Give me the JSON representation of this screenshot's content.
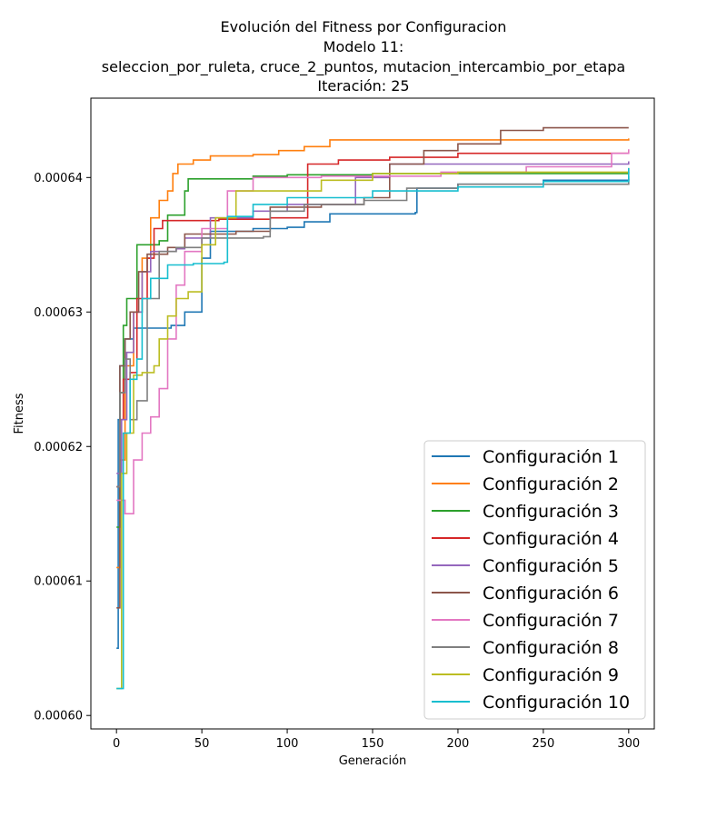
{
  "chart_data": {
    "type": "line",
    "title": "Evolución del Fitness por Configuracion",
    "subtitle_lines": [
      "Modelo 11:",
      "seleccion_por_ruleta, cruce_2_puntos, mutacion_intercambio_por_etapa",
      "Iteración: 25"
    ],
    "xlabel": "Generación",
    "ylabel": "Fitness",
    "xlim": [
      -15,
      315
    ],
    "ylim": [
      0.000599,
      0.0006459
    ],
    "xticks": [
      0,
      50,
      100,
      150,
      200,
      250,
      300
    ],
    "yticks": [
      0.0006,
      0.00061,
      0.00062,
      0.00063,
      0.00064
    ],
    "ytick_labels": [
      "0.00060",
      "0.00061",
      "0.00062",
      "0.00063",
      "0.00064"
    ],
    "grid": false,
    "legend_position": "lower-right",
    "series": [
      {
        "name": "Configuración 1",
        "color": "#1f77b4",
        "points": [
          [
            0,
            0.000605
          ],
          [
            1,
            0.000622
          ],
          [
            2,
            0.000626
          ],
          [
            5,
            0.000628
          ],
          [
            10,
            0.0006288
          ],
          [
            30,
            0.0006288
          ],
          [
            32,
            0.000629
          ],
          [
            40,
            0.00063
          ],
          [
            50,
            0.000634
          ],
          [
            55,
            0.000636
          ],
          [
            80,
            0.0006362
          ],
          [
            100,
            0.0006363
          ],
          [
            110,
            0.0006367
          ],
          [
            125,
            0.0006373
          ],
          [
            175,
            0.0006374
          ],
          [
            176,
            0.0006392
          ],
          [
            200,
            0.0006395
          ],
          [
            250,
            0.0006398
          ],
          [
            300,
            0.0006401
          ]
        ]
      },
      {
        "name": "Configuración 2",
        "color": "#ff7f0e",
        "points": [
          [
            0,
            0.000611
          ],
          [
            2,
            0.000619
          ],
          [
            5,
            0.000626
          ],
          [
            10,
            0.00063
          ],
          [
            15,
            0.000634
          ],
          [
            20,
            0.000637
          ],
          [
            25,
            0.0006383
          ],
          [
            30,
            0.000639
          ],
          [
            33,
            0.0006403
          ],
          [
            36,
            0.000641
          ],
          [
            45,
            0.0006413
          ],
          [
            55,
            0.0006416
          ],
          [
            80,
            0.0006417
          ],
          [
            95,
            0.000642
          ],
          [
            110,
            0.0006423
          ],
          [
            125,
            0.0006428
          ],
          [
            300,
            0.0006429
          ]
        ]
      },
      {
        "name": "Configuración 3",
        "color": "#2ca02c",
        "points": [
          [
            0,
            0.000614
          ],
          [
            2,
            0.000624
          ],
          [
            4,
            0.000629
          ],
          [
            6,
            0.000631
          ],
          [
            12,
            0.000635
          ],
          [
            20,
            0.000635
          ],
          [
            25,
            0.0006353
          ],
          [
            30,
            0.0006372
          ],
          [
            40,
            0.000639
          ],
          [
            42,
            0.0006399
          ],
          [
            80,
            0.0006401
          ],
          [
            100,
            0.0006402
          ],
          [
            150,
            0.0006403
          ],
          [
            200,
            0.0006403
          ],
          [
            300,
            0.0006404
          ]
        ]
      },
      {
        "name": "Configuración 4",
        "color": "#d62728",
        "points": [
          [
            0,
            0.000617
          ],
          [
            2,
            0.000622
          ],
          [
            4,
            0.000625
          ],
          [
            8,
            0.0006255
          ],
          [
            12,
            0.000631
          ],
          [
            18,
            0.000634
          ],
          [
            22,
            0.0006362
          ],
          [
            27,
            0.0006368
          ],
          [
            60,
            0.0006369
          ],
          [
            90,
            0.000637
          ],
          [
            112,
            0.000641
          ],
          [
            130,
            0.0006413
          ],
          [
            160,
            0.0006415
          ],
          [
            200,
            0.0006418
          ],
          [
            300,
            0.0006418
          ]
        ]
      },
      {
        "name": "Configuración 5",
        "color": "#9467bd",
        "points": [
          [
            0,
            0.000618
          ],
          [
            3,
            0.000622
          ],
          [
            6,
            0.000627
          ],
          [
            10,
            0.00063
          ],
          [
            15,
            0.000633
          ],
          [
            20,
            0.0006345
          ],
          [
            35,
            0.0006347
          ],
          [
            40,
            0.0006355
          ],
          [
            55,
            0.000637
          ],
          [
            80,
            0.0006375
          ],
          [
            100,
            0.000638
          ],
          [
            140,
            0.00064
          ],
          [
            160,
            0.000641
          ],
          [
            300,
            0.0006412
          ]
        ]
      },
      {
        "name": "Configuración 6",
        "color": "#8c564b",
        "points": [
          [
            0,
            0.000608
          ],
          [
            2,
            0.000626
          ],
          [
            5,
            0.000628
          ],
          [
            8,
            0.00063
          ],
          [
            13,
            0.000633
          ],
          [
            18,
            0.0006343
          ],
          [
            30,
            0.0006348
          ],
          [
            40,
            0.0006358
          ],
          [
            70,
            0.000636
          ],
          [
            90,
            0.0006378
          ],
          [
            120,
            0.000638
          ],
          [
            145,
            0.0006385
          ],
          [
            160,
            0.000641
          ],
          [
            180,
            0.000642
          ],
          [
            200,
            0.0006425
          ],
          [
            225,
            0.0006435
          ],
          [
            250,
            0.0006437
          ],
          [
            300,
            0.0006437
          ]
        ]
      },
      {
        "name": "Configuración 7",
        "color": "#e377c2",
        "points": [
          [
            0,
            0.000616
          ],
          [
            5,
            0.000615
          ],
          [
            10,
            0.000619
          ],
          [
            15,
            0.000621
          ],
          [
            20,
            0.0006222
          ],
          [
            25,
            0.0006243
          ],
          [
            30,
            0.000628
          ],
          [
            35,
            0.000632
          ],
          [
            40,
            0.0006345
          ],
          [
            50,
            0.0006362
          ],
          [
            65,
            0.000639
          ],
          [
            80,
            0.00064
          ],
          [
            120,
            0.0006401
          ],
          [
            190,
            0.0006404
          ],
          [
            240,
            0.0006408
          ],
          [
            290,
            0.0006418
          ],
          [
            300,
            0.0006421
          ]
        ]
      },
      {
        "name": "Configuración 8",
        "color": "#7f7f7f",
        "points": [
          [
            0,
            0.000617
          ],
          [
            2,
            0.000624
          ],
          [
            5,
            0.0006265
          ],
          [
            8,
            0.000622
          ],
          [
            12,
            0.0006234
          ],
          [
            18,
            0.000631
          ],
          [
            25,
            0.0006345
          ],
          [
            35,
            0.0006348
          ],
          [
            50,
            0.0006355
          ],
          [
            86,
            0.0006356
          ],
          [
            90,
            0.0006375
          ],
          [
            110,
            0.000638
          ],
          [
            145,
            0.0006383
          ],
          [
            170,
            0.0006392
          ],
          [
            200,
            0.0006395
          ],
          [
            300,
            0.0006399
          ]
        ]
      },
      {
        "name": "Configuración 9",
        "color": "#bcbd22",
        "points": [
          [
            0,
            0.000602
          ],
          [
            3,
            0.000618
          ],
          [
            6,
            0.000621
          ],
          [
            10,
            0.0006253
          ],
          [
            15,
            0.0006255
          ],
          [
            22,
            0.000626
          ],
          [
            25,
            0.000628
          ],
          [
            30,
            0.0006297
          ],
          [
            35,
            0.000631
          ],
          [
            42,
            0.0006315
          ],
          [
            50,
            0.000635
          ],
          [
            58,
            0.000637
          ],
          [
            70,
            0.000639
          ],
          [
            95,
            0.000639
          ],
          [
            120,
            0.0006398
          ],
          [
            150,
            0.0006403
          ],
          [
            200,
            0.0006404
          ],
          [
            300,
            0.0006407
          ]
        ]
      },
      {
        "name": "Configuración 10",
        "color": "#17becf",
        "points": [
          [
            0,
            0.000602
          ],
          [
            4,
            0.000621
          ],
          [
            8,
            0.000625
          ],
          [
            12,
            0.0006265
          ],
          [
            15,
            0.000631
          ],
          [
            20,
            0.0006325
          ],
          [
            30,
            0.0006335
          ],
          [
            45,
            0.0006336
          ],
          [
            63,
            0.0006337
          ],
          [
            65,
            0.0006371
          ],
          [
            80,
            0.000638
          ],
          [
            100,
            0.0006385
          ],
          [
            150,
            0.000639
          ],
          [
            200,
            0.0006393
          ],
          [
            250,
            0.0006397
          ],
          [
            300,
            0.0006407
          ]
        ]
      }
    ]
  }
}
